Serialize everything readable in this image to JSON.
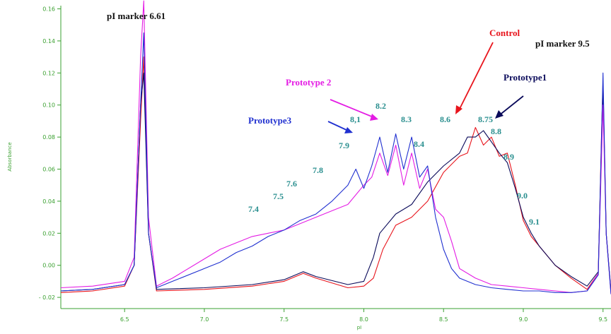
{
  "chart_data": {
    "type": "line",
    "title": "",
    "xlabel": "pI",
    "ylabel": "Absorbance",
    "xlim": [
      6.1,
      9.55
    ],
    "ylim": [
      -0.027,
      0.162
    ],
    "x_ticks": [
      6.5,
      7.0,
      7.5,
      8.0,
      8.5,
      9.0,
      9.5
    ],
    "x_tick_labels": [
      "6.5",
      "7.0",
      "7.5",
      "8.0",
      "8.5",
      "9.0",
      "9.5"
    ],
    "y_ticks": [
      -0.02,
      0.0,
      0.02,
      0.04,
      0.06,
      0.08,
      0.1,
      0.12,
      0.14,
      0.16
    ],
    "y_tick_labels": [
      "- 0.02",
      "0.00",
      "0.02",
      "0.04",
      "0.06",
      "0.08",
      "0.10",
      "0.12",
      "0.14",
      "0.16"
    ],
    "grid": false,
    "legend": "none",
    "series": [
      {
        "name": "Control",
        "color": "#e8141c",
        "x": [
          6.1,
          6.3,
          6.5,
          6.56,
          6.6,
          6.62,
          6.65,
          6.7,
          7.0,
          7.3,
          7.5,
          7.62,
          7.7,
          7.9,
          8.0,
          8.06,
          8.12,
          8.2,
          8.3,
          8.4,
          8.5,
          8.6,
          8.65,
          8.7,
          8.75,
          8.8,
          8.85,
          8.9,
          8.95,
          9.0,
          9.05,
          9.1,
          9.2,
          9.3,
          9.4,
          9.47,
          9.49,
          9.5,
          9.52,
          9.55
        ],
        "y": [
          -0.017,
          -0.016,
          -0.013,
          0.0,
          0.09,
          0.13,
          0.02,
          -0.016,
          -0.015,
          -0.013,
          -0.01,
          -0.005,
          -0.008,
          -0.014,
          -0.013,
          -0.008,
          0.01,
          0.025,
          0.03,
          0.04,
          0.058,
          0.068,
          0.07,
          0.086,
          0.075,
          0.08,
          0.068,
          0.07,
          0.05,
          0.028,
          0.018,
          0.012,
          0.0,
          -0.008,
          -0.015,
          -0.005,
          0.08,
          0.115,
          0.02,
          -0.017
        ]
      },
      {
        "name": "Prototype1",
        "color": "#0a0a5a",
        "x": [
          6.1,
          6.3,
          6.5,
          6.56,
          6.6,
          6.62,
          6.65,
          6.7,
          7.0,
          7.3,
          7.5,
          7.62,
          7.7,
          7.9,
          8.0,
          8.06,
          8.1,
          8.2,
          8.3,
          8.4,
          8.5,
          8.6,
          8.65,
          8.7,
          8.75,
          8.8,
          8.85,
          8.9,
          8.95,
          9.0,
          9.05,
          9.1,
          9.2,
          9.3,
          9.4,
          9.47,
          9.49,
          9.5,
          9.52,
          9.55
        ],
        "y": [
          -0.016,
          -0.015,
          -0.012,
          0.0,
          0.1,
          0.12,
          0.02,
          -0.015,
          -0.014,
          -0.012,
          -0.009,
          -0.004,
          -0.007,
          -0.012,
          -0.01,
          0.005,
          0.02,
          0.032,
          0.038,
          0.052,
          0.062,
          0.07,
          0.08,
          0.08,
          0.084,
          0.077,
          0.07,
          0.064,
          0.048,
          0.03,
          0.02,
          0.012,
          0.0,
          -0.007,
          -0.013,
          -0.004,
          0.075,
          0.11,
          0.02,
          -0.016
        ]
      },
      {
        "name": "Prototype 2",
        "color": "#e41ce4",
        "x": [
          6.1,
          6.3,
          6.5,
          6.56,
          6.6,
          6.62,
          6.65,
          6.7,
          6.8,
          7.0,
          7.1,
          7.2,
          7.3,
          7.4,
          7.5,
          7.6,
          7.7,
          7.8,
          7.9,
          8.0,
          8.05,
          8.1,
          8.15,
          8.2,
          8.25,
          8.3,
          8.35,
          8.4,
          8.45,
          8.5,
          8.55,
          8.6,
          8.7,
          8.8,
          8.9,
          9.0,
          9.1,
          9.2,
          9.3,
          9.4,
          9.47,
          9.5,
          9.52,
          9.55
        ],
        "y": [
          -0.014,
          -0.013,
          -0.01,
          0.005,
          0.13,
          0.165,
          0.03,
          -0.013,
          -0.008,
          0.004,
          0.01,
          0.014,
          0.018,
          0.02,
          0.022,
          0.026,
          0.03,
          0.034,
          0.038,
          0.05,
          0.055,
          0.07,
          0.056,
          0.075,
          0.05,
          0.07,
          0.048,
          0.06,
          0.035,
          0.03,
          0.015,
          -0.002,
          -0.008,
          -0.012,
          -0.013,
          -0.014,
          -0.015,
          -0.016,
          -0.017,
          -0.016,
          -0.005,
          0.1,
          0.02,
          -0.018
        ]
      },
      {
        "name": "Prototype3",
        "color": "#2030d0",
        "x": [
          6.1,
          6.3,
          6.5,
          6.56,
          6.6,
          6.62,
          6.65,
          6.7,
          6.8,
          7.0,
          7.1,
          7.2,
          7.3,
          7.4,
          7.5,
          7.6,
          7.7,
          7.8,
          7.9,
          7.95,
          8.0,
          8.05,
          8.1,
          8.15,
          8.2,
          8.25,
          8.3,
          8.35,
          8.4,
          8.45,
          8.5,
          8.55,
          8.6,
          8.7,
          8.8,
          8.9,
          9.0,
          9.1,
          9.2,
          9.3,
          9.4,
          9.47,
          9.5,
          9.52,
          9.55
        ],
        "y": [
          -0.016,
          -0.015,
          -0.012,
          0.0,
          0.1,
          0.145,
          0.02,
          -0.014,
          -0.01,
          -0.002,
          0.002,
          0.008,
          0.012,
          0.018,
          0.022,
          0.028,
          0.032,
          0.04,
          0.05,
          0.06,
          0.048,
          0.062,
          0.08,
          0.058,
          0.082,
          0.06,
          0.08,
          0.055,
          0.062,
          0.03,
          0.01,
          -0.002,
          -0.008,
          -0.012,
          -0.014,
          -0.015,
          -0.016,
          -0.016,
          -0.017,
          -0.017,
          -0.016,
          -0.006,
          0.12,
          0.02,
          -0.018
        ]
      }
    ],
    "annotations": {
      "marker_661": "pI marker 6.61",
      "marker_95": "pI marker 9.5",
      "control": "Control",
      "prototype1": "Prototype1",
      "prototype2": "Prototype 2",
      "prototype3": "Prototype3",
      "peaks": [
        "7.4",
        "7.5",
        "7.6",
        "7.8",
        "7.9",
        "8,1",
        "8.2",
        "8.3",
        "8.4",
        "8.6",
        "8.75",
        "8.8",
        "8.9",
        "9.0",
        "9.1"
      ]
    }
  }
}
